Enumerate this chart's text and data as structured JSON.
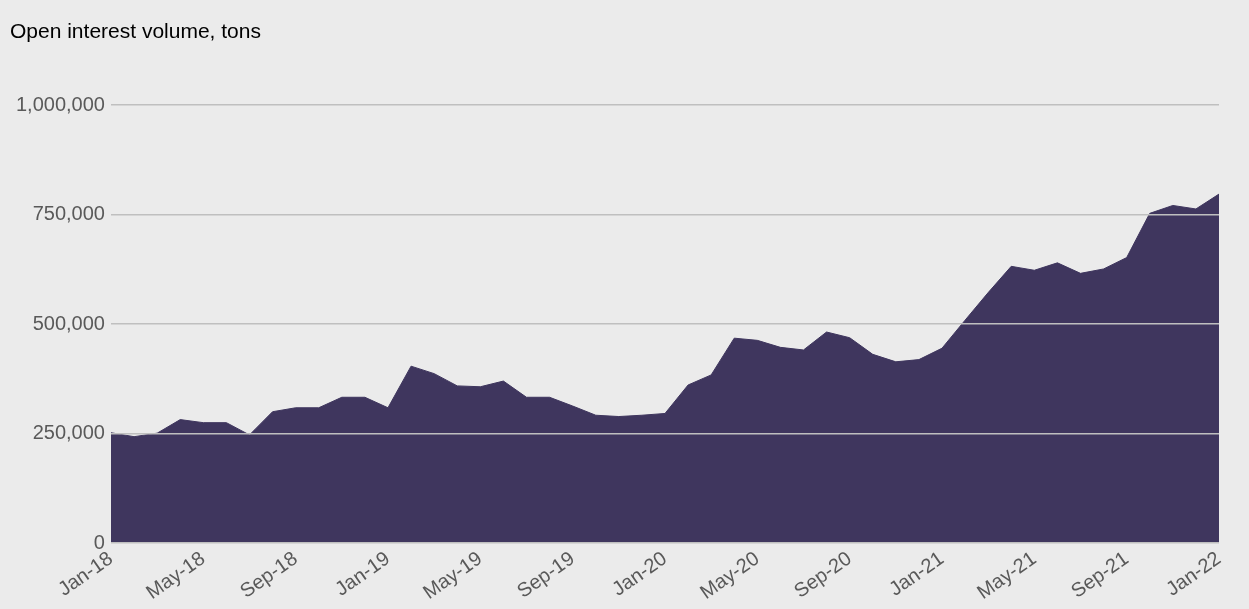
{
  "chart_data": {
    "type": "area",
    "title": "Open interest volume, tons",
    "categories": [
      "Jan-18",
      null,
      null,
      null,
      "May-18",
      null,
      null,
      null,
      "Sep-18",
      null,
      null,
      null,
      "Jan-19",
      null,
      null,
      null,
      "May-19",
      null,
      null,
      null,
      "Sep-19",
      null,
      null,
      null,
      "Jan-20",
      null,
      null,
      null,
      "May-20",
      null,
      null,
      null,
      "Sep-20",
      null,
      null,
      null,
      "Jan-21",
      null,
      null,
      null,
      "May-21",
      null,
      null,
      null,
      "Sep-21",
      null,
      null,
      null,
      "Jan-22"
    ],
    "series": [
      {
        "color": "#3f365e",
        "values": [
          252000,
          243000,
          251000,
          282000,
          275000,
          275000,
          247000,
          300000,
          309000,
          309000,
          333000,
          333000,
          309000,
          404000,
          387000,
          359000,
          357000,
          370000,
          333000,
          333000,
          313000,
          292000,
          289000,
          292000,
          296000,
          361000,
          384000,
          468000,
          463000,
          447000,
          441000,
          482000,
          469000,
          431000,
          414000,
          419000,
          445000,
          509000,
          572000,
          632000,
          623000,
          640000,
          616000,
          626000,
          652000,
          753000,
          771000,
          763000,
          797000
        ]
      }
    ],
    "ylim": [
      0,
      1000000
    ],
    "yticks": [
      0,
      {
        "value": 250000,
        "label": "250,000"
      },
      {
        "value": 500000,
        "label": "500,000"
      },
      {
        "value": 750000,
        "label": "750,000"
      },
      {
        "value": 1000000,
        "label": "1,000,000"
      }
    ],
    "grid": "y",
    "legend": false
  }
}
